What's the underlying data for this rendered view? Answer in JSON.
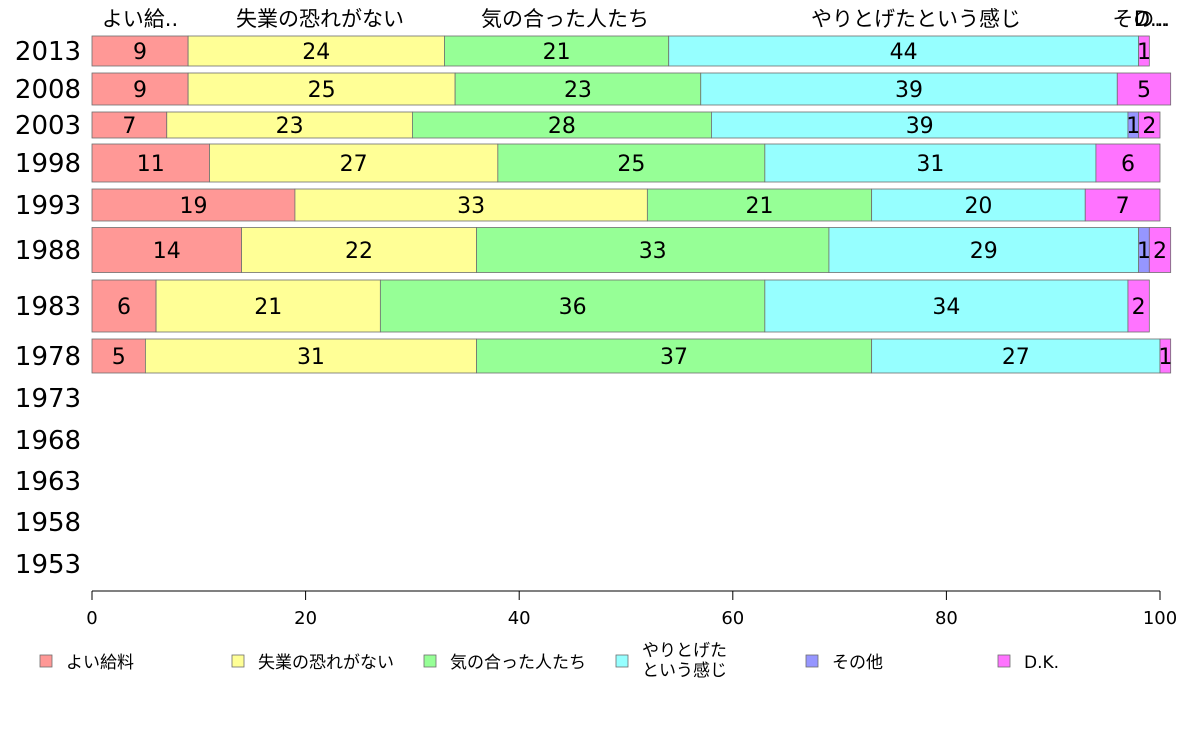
{
  "chart_data": {
    "type": "bar",
    "orientation": "horizontal",
    "stacked": true,
    "xlim": [
      0,
      100
    ],
    "x_ticks": [
      "0",
      "20",
      "40",
      "60",
      "80",
      "100"
    ],
    "grid": false,
    "legend_position": "bottom",
    "column_headers": [
      "よい給..",
      "失業の恐れがない",
      "気の合った人たち",
      "やりとげたという感じ",
      "その..",
      "D..."
    ],
    "categories": [
      "2013",
      "2008",
      "2003",
      "1998",
      "1993",
      "1988",
      "1983",
      "1978",
      "1973",
      "1968",
      "1963",
      "1958",
      "1953"
    ],
    "series": [
      {
        "name": "よい給料",
        "color": "#ff9896",
        "values": [
          9,
          9,
          7,
          11,
          19,
          14,
          6,
          5,
          null,
          null,
          null,
          null,
          null
        ]
      },
      {
        "name": "失業の恐れがない",
        "color": "#ffff96",
        "values": [
          24,
          25,
          23,
          27,
          33,
          22,
          21,
          31,
          null,
          null,
          null,
          null,
          null
        ]
      },
      {
        "name": "気の合った人たち",
        "color": "#96ff96",
        "values": [
          21,
          23,
          28,
          25,
          21,
          33,
          36,
          37,
          null,
          null,
          null,
          null,
          null
        ]
      },
      {
        "name": "やりとげた\nという感じ",
        "color": "#96ffff",
        "values": [
          44,
          39,
          39,
          31,
          20,
          29,
          34,
          27,
          null,
          null,
          null,
          null,
          null
        ]
      },
      {
        "name": "その他",
        "color": "#9696ff",
        "values": [
          0,
          0,
          1,
          0,
          0,
          1,
          0,
          0,
          null,
          null,
          null,
          null,
          null
        ]
      },
      {
        "name": "D.K.",
        "color": "#ff73ff",
        "values": [
          1,
          5,
          2,
          6,
          7,
          2,
          2,
          1,
          null,
          null,
          null,
          null,
          null
        ]
      }
    ]
  }
}
